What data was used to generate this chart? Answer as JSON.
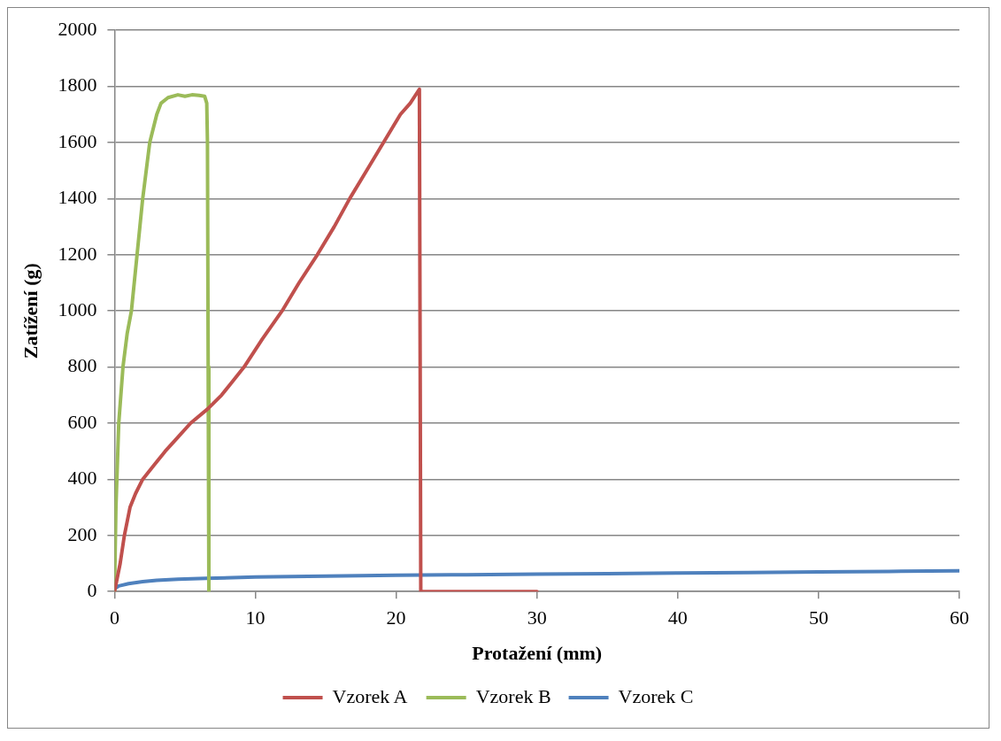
{
  "chart_data": {
    "type": "line",
    "xlabel": "Protažení (mm)",
    "ylabel": "Zatížení (g)",
    "xlim": [
      0,
      60
    ],
    "xticks": [
      0,
      10,
      20,
      30,
      40,
      50,
      60
    ],
    "ylim": [
      0,
      2000
    ],
    "yticks": [
      0,
      200,
      400,
      600,
      800,
      1000,
      1200,
      1400,
      1600,
      1800,
      2000
    ],
    "grid": "y",
    "legend": "bottom",
    "marker": "none",
    "line_style": "solid",
    "series": [
      {
        "name": "Vzorek A",
        "color": "#c0504d",
        "x": [
          0,
          0.4,
          0.7,
          1.1,
          1.5,
          2.0,
          2.8,
          3.6,
          4.5,
          5.4,
          6.6,
          7.0,
          7.6,
          8.4,
          9.2,
          10.5,
          11.9,
          13.1,
          14.4,
          15.6,
          16.7,
          17.9,
          19.1,
          20.3,
          21.0,
          21.65,
          21.75,
          22,
          25,
          30
        ],
        "values": [
          0,
          100,
          200,
          300,
          350,
          400,
          450,
          500,
          550,
          600,
          650,
          670,
          700,
          750,
          800,
          900,
          1000,
          1100,
          1200,
          1300,
          1400,
          1500,
          1600,
          1700,
          1740,
          1790,
          0,
          0,
          0,
          0
        ]
      },
      {
        "name": "Vzorek B",
        "color": "#9bbb59",
        "x": [
          0,
          0.1,
          0.3,
          0.6,
          0.9,
          1.2,
          1.6,
          2.0,
          2.5,
          3.0,
          3.3,
          3.8,
          4.5,
          5.0,
          5.5,
          6.0,
          6.4,
          6.55,
          6.6,
          6.65,
          6.7
        ],
        "values": [
          0,
          300,
          600,
          800,
          920,
          1000,
          1200,
          1400,
          1600,
          1700,
          1740,
          1760,
          1770,
          1765,
          1770,
          1768,
          1765,
          1740,
          1600,
          800,
          0
        ]
      },
      {
        "name": "Vzorek C",
        "color": "#4f81bd",
        "x": [
          0,
          0.3,
          1,
          2,
          3,
          4.5,
          6.5,
          10,
          15,
          20,
          25,
          30,
          35,
          40,
          45,
          50,
          55,
          60
        ],
        "values": [
          10,
          20,
          28,
          35,
          40,
          44,
          47,
          52,
          55,
          58,
          60,
          62,
          64,
          66,
          68,
          70,
          72,
          74
        ]
      }
    ]
  }
}
